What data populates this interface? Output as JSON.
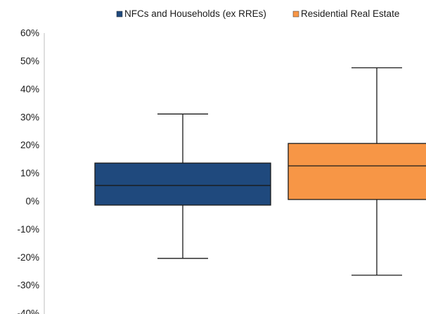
{
  "chart_data": {
    "type": "boxplot",
    "title": "",
    "xlabel": "",
    "ylabel": "",
    "ylim": [
      -40,
      60
    ],
    "y_unit": "%",
    "y_ticks": [
      "60%",
      "50%",
      "40%",
      "30%",
      "20%",
      "10%",
      "0%",
      "-10%",
      "-20%",
      "-30%",
      "-40%"
    ],
    "y_tick_values": [
      60,
      50,
      40,
      30,
      20,
      10,
      0,
      -10,
      -20,
      -30,
      -40
    ],
    "grid": false,
    "legend_position": "top-right",
    "series": [
      {
        "name": "NFCs and Households (ex RREs)",
        "color": "#1F497D",
        "whisker_low": -20.5,
        "q1": -1.5,
        "median": 5.5,
        "q3": 13.5,
        "whisker_high": 31
      },
      {
        "name": "Residential Real Estate",
        "color": "#F79646",
        "whisker_low": -26.5,
        "q1": 0.5,
        "median": 12.5,
        "q3": 20.5,
        "whisker_high": 47.5
      }
    ]
  }
}
